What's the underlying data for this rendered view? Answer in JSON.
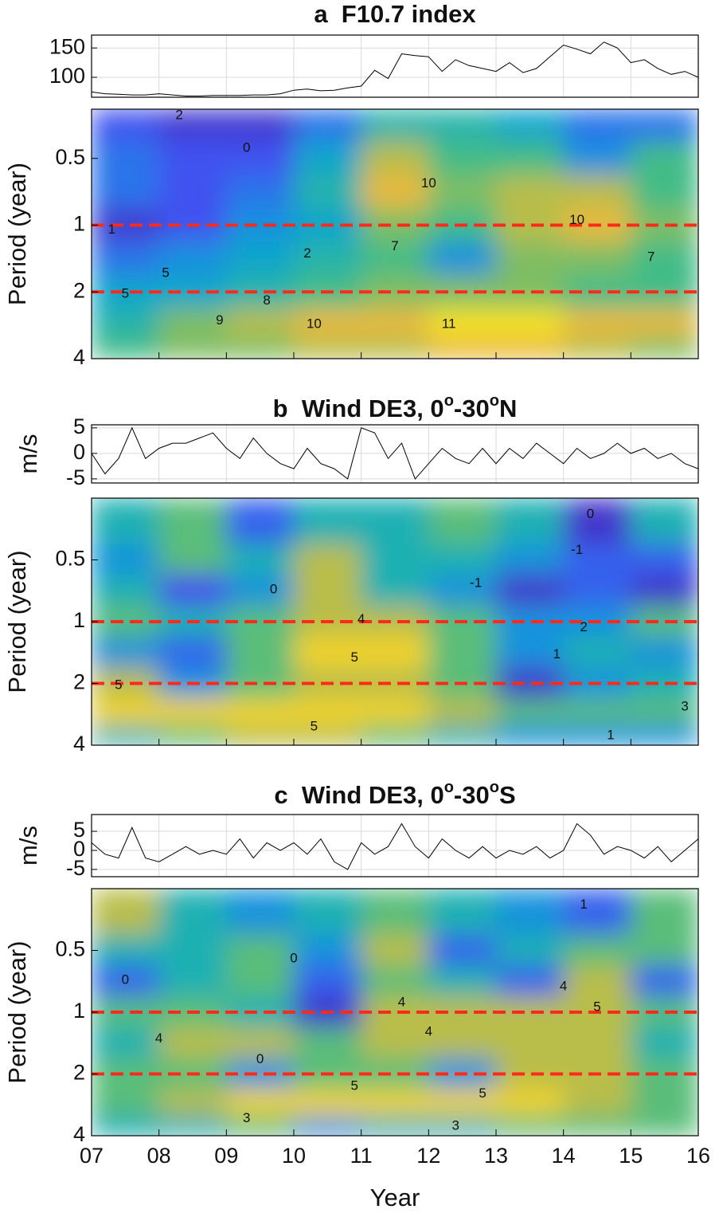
{
  "xlabel": "Year",
  "colormap": [
    [
      0,
      "#3e26a8"
    ],
    [
      0.15,
      "#4748f1"
    ],
    [
      0.3,
      "#1e85e8"
    ],
    [
      0.45,
      "#0faac8"
    ],
    [
      0.6,
      "#3cbc8a"
    ],
    [
      0.75,
      "#a5be4e"
    ],
    [
      0.88,
      "#efb93a"
    ],
    [
      1,
      "#f9fb0e"
    ]
  ],
  "chart_data": [
    {
      "type": "line",
      "title_parts": [
        "a  F10.7 index"
      ],
      "color": "#000000",
      "grid": true,
      "x": [
        2007.0,
        2007.2,
        2007.4,
        2007.6,
        2007.8,
        2008.0,
        2008.2,
        2008.4,
        2008.6,
        2008.8,
        2009.0,
        2009.2,
        2009.4,
        2009.6,
        2009.8,
        2010.0,
        2010.2,
        2010.4,
        2010.6,
        2010.8,
        2011.0,
        2011.2,
        2011.4,
        2011.6,
        2011.8,
        2012.0,
        2012.2,
        2012.4,
        2012.6,
        2012.8,
        2013.0,
        2013.2,
        2013.4,
        2013.6,
        2013.8,
        2014.0,
        2014.2,
        2014.4,
        2014.6,
        2014.8,
        2015.0,
        2015.2,
        2015.4,
        2015.6,
        2015.8,
        2016.0
      ],
      "values": [
        75,
        72,
        71,
        70,
        70,
        72,
        70,
        68,
        68,
        69,
        69,
        69,
        70,
        70,
        72,
        78,
        80,
        77,
        78,
        82,
        85,
        112,
        98,
        140,
        137,
        135,
        110,
        130,
        120,
        115,
        110,
        125,
        108,
        115,
        135,
        155,
        148,
        140,
        160,
        150,
        125,
        130,
        115,
        105,
        110,
        100
      ],
      "xlim": [
        2007,
        2016
      ],
      "xticks": [
        2007,
        2008,
        2009,
        2010,
        2011,
        2012,
        2013,
        2014,
        2015,
        2016
      ],
      "ylim": [
        66,
        172
      ],
      "yticks": [
        100,
        150
      ]
    },
    {
      "type": "heatmap",
      "ylabel": "Period (year)",
      "log": true,
      "reverse": true,
      "x": [
        2007.5,
        2008.5,
        2009.5,
        2010.5,
        2011.5,
        2012.5,
        2013.5,
        2014.5,
        2015.5
      ],
      "y": [
        0.35,
        0.5,
        0.7,
        1,
        1.4,
        2,
        2.8,
        3.6
      ],
      "z": [
        [
          2,
          1,
          1,
          3,
          6,
          6,
          5,
          3,
          3
        ],
        [
          3,
          2,
          2,
          5,
          9,
          7,
          7,
          4,
          7
        ],
        [
          3,
          2,
          3,
          6,
          10,
          8,
          9,
          9,
          7
        ],
        [
          1,
          2,
          4,
          5,
          8,
          7,
          9,
          10,
          8
        ],
        [
          3,
          4,
          5,
          6,
          7,
          4,
          8,
          8,
          7
        ],
        [
          5,
          5,
          6,
          7,
          8,
          8,
          8,
          7,
          7
        ],
        [
          6,
          8,
          9,
          10,
          10,
          11,
          11,
          10,
          10
        ],
        [
          7,
          8,
          8,
          9,
          9,
          10,
          10,
          9,
          8
        ]
      ],
      "clim": [
        0,
        11.5
      ],
      "xlim": [
        2007,
        2016
      ],
      "xticks": [
        2007,
        2008,
        2009,
        2010,
        2011,
        2012,
        2013,
        2014,
        2015,
        2016
      ],
      "ylim": [
        0.3,
        4
      ],
      "yticks": [
        0.5,
        1,
        2,
        4
      ],
      "reference_lines": [
        1,
        2
      ],
      "reference_color": "#ff2a1a",
      "contour_labels": [
        {
          "x": 2007.3,
          "y": 1.05,
          "value": 1
        },
        {
          "x": 2008.3,
          "y": 0.32,
          "value": 2
        },
        {
          "x": 2009.3,
          "y": 0.45,
          "value": 0
        },
        {
          "x": 2010.2,
          "y": 1.35,
          "value": 2
        },
        {
          "x": 2011.5,
          "y": 1.25,
          "value": 7
        },
        {
          "x": 2012.0,
          "y": 0.65,
          "value": 10
        },
        {
          "x": 2012.3,
          "y": 2.8,
          "value": 11
        },
        {
          "x": 2014.2,
          "y": 0.95,
          "value": 10
        },
        {
          "x": 2015.3,
          "y": 1.4,
          "value": 7
        },
        {
          "x": 2010.3,
          "y": 2.8,
          "value": 10
        },
        {
          "x": 2008.9,
          "y": 2.7,
          "value": 9
        },
        {
          "x": 2009.6,
          "y": 2.2,
          "value": 8
        },
        {
          "x": 2007.5,
          "y": 2.05,
          "value": 5
        },
        {
          "x": 2008.1,
          "y": 1.65,
          "value": 5
        }
      ]
    },
    {
      "type": "line",
      "title_parts": [
        "b  Wind DE3, 0",
        "o",
        "-30",
        "o",
        "N"
      ],
      "ylabel": "m/s",
      "color": "#000000",
      "grid": true,
      "x": [
        2007.0,
        2007.2,
        2007.4,
        2007.6,
        2007.8,
        2008.0,
        2008.2,
        2008.4,
        2008.6,
        2008.8,
        2009.0,
        2009.2,
        2009.4,
        2009.6,
        2009.8,
        2010.0,
        2010.2,
        2010.4,
        2010.6,
        2010.8,
        2011.0,
        2011.2,
        2011.4,
        2011.6,
        2011.8,
        2012.0,
        2012.2,
        2012.4,
        2012.6,
        2012.8,
        2013.0,
        2013.2,
        2013.4,
        2013.6,
        2013.8,
        2014.0,
        2014.2,
        2014.4,
        2014.6,
        2014.8,
        2015.0,
        2015.2,
        2015.4,
        2015.6,
        2015.8,
        2016.0
      ],
      "values": [
        0,
        -4,
        -1,
        5,
        -1,
        1,
        2,
        2,
        3,
        4,
        1,
        -1,
        3,
        0,
        -2,
        -3,
        1,
        -2,
        -3,
        -5,
        5,
        4,
        -1,
        2,
        -5,
        -2,
        1,
        -1,
        -2,
        1,
        -2,
        1,
        -1,
        2,
        0,
        -2,
        1,
        -1,
        0,
        2,
        0,
        1,
        -1,
        0,
        -2,
        -3
      ],
      "xlim": [
        2007,
        2016
      ],
      "xticks": [
        2007,
        2008,
        2009,
        2010,
        2011,
        2012,
        2013,
        2014,
        2015,
        2016
      ],
      "ylim": [
        -5.8,
        5.6
      ],
      "yticks": [
        -5,
        0,
        5
      ]
    },
    {
      "type": "heatmap",
      "ylabel": "Period (year)",
      "log": true,
      "reverse": true,
      "x": [
        2007.5,
        2008.5,
        2009.5,
        2010.5,
        2011.5,
        2012.5,
        2013.5,
        2014.5,
        2015.5
      ],
      "y": [
        0.35,
        0.5,
        0.7,
        1,
        1.4,
        2,
        2.8,
        3.6
      ],
      "z": [
        [
          2,
          3,
          0,
          2,
          2,
          3,
          2,
          -1,
          2
        ],
        [
          1,
          3,
          2,
          4,
          2,
          2,
          1,
          0,
          0
        ],
        [
          2,
          -0.5,
          1,
          4,
          2,
          1,
          -1,
          0,
          -1
        ],
        [
          3,
          2,
          3,
          4,
          4,
          3,
          1,
          1,
          3
        ],
        [
          1,
          0,
          3,
          5,
          5,
          3,
          1,
          2,
          1
        ],
        [
          4,
          1,
          3,
          4,
          4,
          3,
          -1,
          1,
          2
        ],
        [
          5,
          5,
          5,
          5,
          5,
          4,
          3,
          3,
          3
        ],
        [
          2,
          3,
          4,
          4,
          3,
          2,
          1,
          1,
          1
        ]
      ],
      "clim": [
        -1.5,
        5.5
      ],
      "xlim": [
        2007,
        2016
      ],
      "xticks": [
        2007,
        2008,
        2009,
        2010,
        2011,
        2012,
        2013,
        2014,
        2015,
        2016
      ],
      "ylim": [
        0.25,
        4
      ],
      "yticks": [
        0.5,
        1,
        2,
        4
      ],
      "reference_lines": [
        1,
        2
      ],
      "reference_color": "#ff2a1a",
      "contour_labels": [
        {
          "x": 2007.4,
          "y": 2.05,
          "value": 5
        },
        {
          "x": 2010.3,
          "y": 3.25,
          "value": 5
        },
        {
          "x": 2010.9,
          "y": 1.5,
          "value": 5
        },
        {
          "x": 2011.0,
          "y": 0.98,
          "value": 4
        },
        {
          "x": 2014.4,
          "y": 0.3,
          "value": 0
        },
        {
          "x": 2014.2,
          "y": 0.45,
          "value": -1
        },
        {
          "x": 2013.9,
          "y": 1.45,
          "value": 1
        },
        {
          "x": 2014.3,
          "y": 1.07,
          "value": 2
        },
        {
          "x": 2015.8,
          "y": 2.6,
          "value": 3
        },
        {
          "x": 2012.7,
          "y": 0.65,
          "value": -1
        },
        {
          "x": 2009.7,
          "y": 0.7,
          "value": 0
        },
        {
          "x": 2014.7,
          "y": 3.6,
          "value": 1
        }
      ]
    },
    {
      "type": "line",
      "title_parts": [
        "c  Wind DE3, 0",
        "o",
        "-30",
        "o",
        "S"
      ],
      "ylabel": "m/s",
      "color": "#000000",
      "grid": true,
      "x": [
        2007.0,
        2007.2,
        2007.4,
        2007.6,
        2007.8,
        2008.0,
        2008.2,
        2008.4,
        2008.6,
        2008.8,
        2009.0,
        2009.2,
        2009.4,
        2009.6,
        2009.8,
        2010.0,
        2010.2,
        2010.4,
        2010.6,
        2010.8,
        2011.0,
        2011.2,
        2011.4,
        2011.6,
        2011.8,
        2012.0,
        2012.2,
        2012.4,
        2012.6,
        2012.8,
        2013.0,
        2013.2,
        2013.4,
        2013.6,
        2013.8,
        2014.0,
        2014.2,
        2014.4,
        2014.6,
        2014.8,
        2015.0,
        2015.2,
        2015.4,
        2015.6,
        2015.8,
        2016.0
      ],
      "values": [
        2,
        -1,
        -2,
        6,
        -2,
        -3,
        -1,
        1,
        -1,
        0,
        -1,
        3,
        -2,
        2,
        0,
        2,
        -1,
        3,
        -3,
        -5,
        2,
        -1,
        1,
        7,
        1,
        -2,
        3,
        0,
        -2,
        1,
        -2,
        0,
        -1,
        1,
        -2,
        0,
        7,
        4,
        -1,
        1,
        0,
        -2,
        1,
        -3,
        0,
        3
      ],
      "xlim": [
        2007,
        2016
      ],
      "xticks": [
        2007,
        2008,
        2009,
        2010,
        2011,
        2012,
        2013,
        2014,
        2015,
        2016
      ],
      "ylim": [
        -6.9,
        9.4
      ],
      "yticks": [
        -5,
        0,
        5
      ]
    },
    {
      "type": "heatmap",
      "ylabel": "Period (year)",
      "log": true,
      "reverse": true,
      "x": [
        2007.5,
        2008.5,
        2009.5,
        2010.5,
        2011.5,
        2012.5,
        2013.5,
        2014.5,
        2015.5
      ],
      "y": [
        0.35,
        0.5,
        0.7,
        1,
        1.4,
        2,
        2.8,
        3.6
      ],
      "z": [
        [
          4,
          2,
          1,
          2,
          3,
          2,
          1,
          0,
          3
        ],
        [
          2,
          2,
          3,
          1,
          4,
          0,
          2,
          3,
          3
        ],
        [
          0,
          2,
          3,
          0,
          3,
          2,
          0,
          4,
          0
        ],
        [
          3,
          3,
          2,
          -1,
          4,
          4,
          4,
          4,
          3
        ],
        [
          2,
          4,
          4,
          3,
          4,
          4,
          4,
          4,
          2
        ],
        [
          3,
          3,
          1,
          3,
          3,
          1,
          4,
          4,
          3
        ],
        [
          3,
          4,
          5,
          5,
          5,
          5,
          5,
          4,
          3
        ],
        [
          2,
          2,
          3,
          1,
          2,
          2,
          3,
          3,
          3
        ]
      ],
      "clim": [
        -1.5,
        5.5
      ],
      "xlim": [
        2007,
        2016
      ],
      "xticks": [
        {
          "value": 2007,
          "label": "07"
        },
        {
          "value": 2008,
          "label": "08"
        },
        {
          "value": 2009,
          "label": "09"
        },
        {
          "value": 2010,
          "label": "10"
        },
        {
          "value": 2011,
          "label": "11"
        },
        {
          "value": 2012,
          "label": "12"
        },
        {
          "value": 2013,
          "label": "13"
        },
        {
          "value": 2014,
          "label": "14"
        },
        {
          "value": 2015,
          "label": "15"
        },
        {
          "value": 2016,
          "label": "16"
        }
      ],
      "ylim": [
        0.25,
        4
      ],
      "yticks": [
        0.5,
        1,
        2,
        4
      ],
      "reference_lines": [
        1,
        2
      ],
      "reference_color": "#ff2a1a",
      "contour_labels": [
        {
          "x": 2007.5,
          "y": 0.7,
          "value": 0
        },
        {
          "x": 2009.5,
          "y": 1.7,
          "value": 0
        },
        {
          "x": 2010.0,
          "y": 0.55,
          "value": 0
        },
        {
          "x": 2008.0,
          "y": 1.35,
          "value": 4
        },
        {
          "x": 2011.6,
          "y": 0.9,
          "value": 4
        },
        {
          "x": 2012.0,
          "y": 1.25,
          "value": 4
        },
        {
          "x": 2010.9,
          "y": 2.3,
          "value": 5
        },
        {
          "x": 2012.8,
          "y": 2.5,
          "value": 5
        },
        {
          "x": 2014.5,
          "y": 0.95,
          "value": 5
        },
        {
          "x": 2014.0,
          "y": 0.75,
          "value": 4
        },
        {
          "x": 2014.3,
          "y": 0.3,
          "value": 1
        },
        {
          "x": 2009.3,
          "y": 3.3,
          "value": 3
        },
        {
          "x": 2012.4,
          "y": 3.6,
          "value": 3
        }
      ]
    }
  ]
}
